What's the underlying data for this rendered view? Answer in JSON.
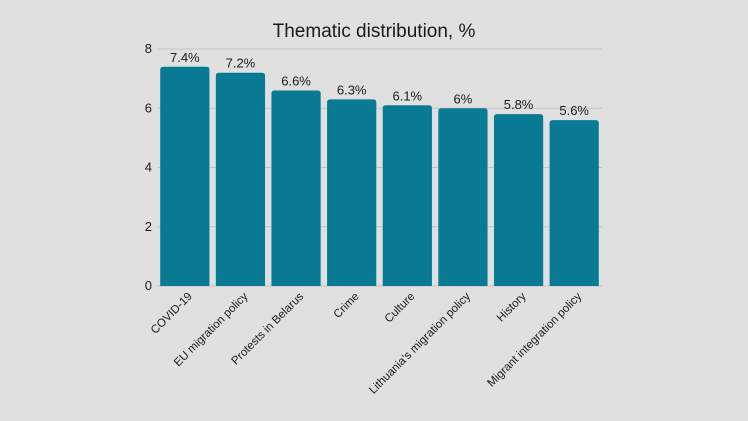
{
  "chart_data": {
    "type": "bar",
    "title": "Thematic distribution, %",
    "xlabel": "",
    "ylabel": "",
    "categories": [
      "COVID-19",
      "EU migration policy",
      "Protests in Belarus",
      "Crime",
      "Culture",
      "Lithuania's migration policy",
      "History",
      "Migrant integration policy"
    ],
    "values": [
      7.4,
      7.2,
      6.6,
      6.3,
      6.1,
      6,
      5.8,
      5.6
    ],
    "data_labels": [
      "7.4%",
      "7.2%",
      "6.6%",
      "6.3%",
      "6.1%",
      "6%",
      "5.8%",
      "5.6%"
    ],
    "ylim": [
      0,
      8
    ],
    "yticks": [
      0,
      2,
      4,
      6,
      8
    ],
    "grid": true,
    "legend": "none",
    "colors": {
      "bar": "#097a94",
      "background": "#e0e0e0"
    }
  }
}
